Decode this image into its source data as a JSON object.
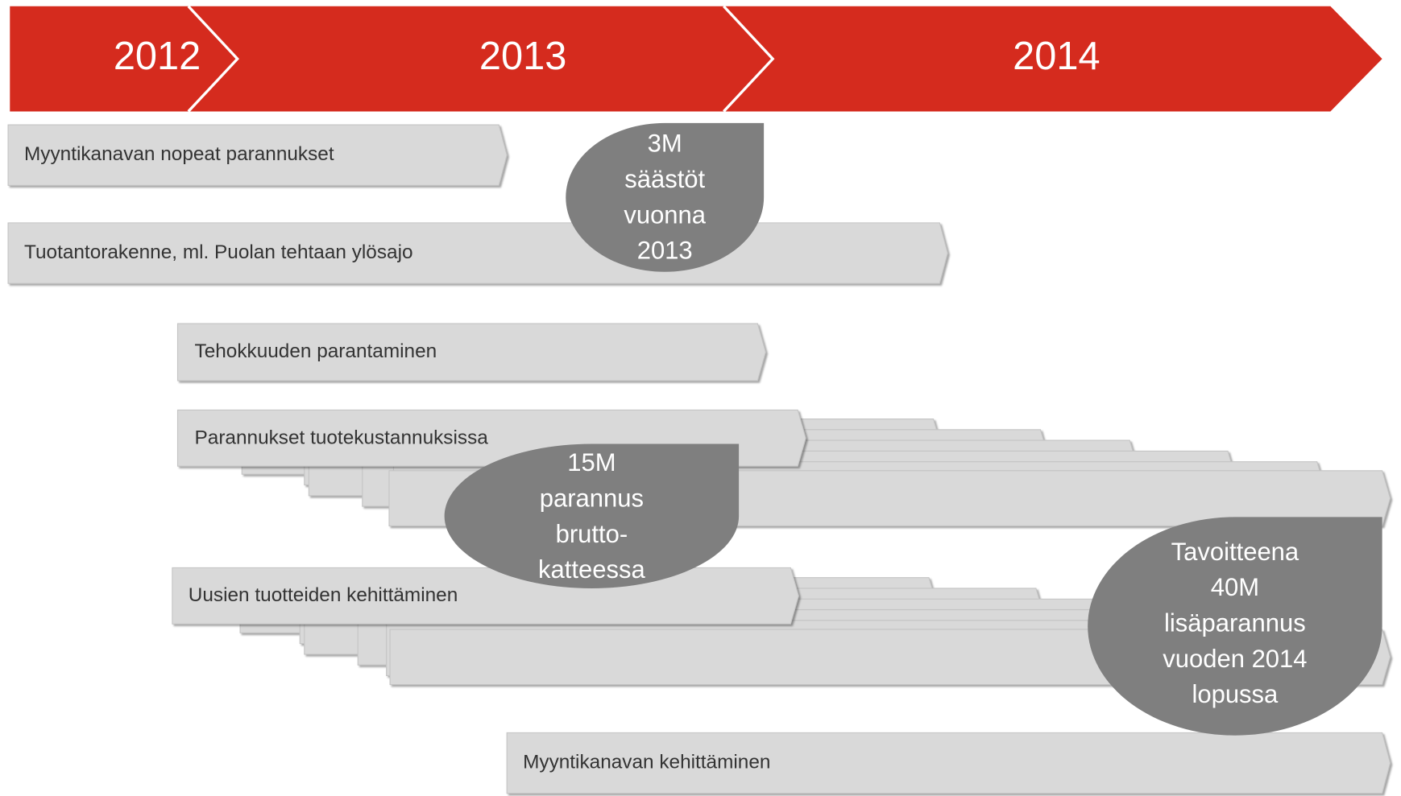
{
  "header": {
    "years": [
      "2012",
      "2013",
      "2014"
    ]
  },
  "tasks": [
    "Myyntikanavan nopeat parannukset",
    "Tuotantorakenne, ml. Puolan tehtaan ylösajo",
    "Tehokkuuden parantaminen",
    "Parannukset tuotekustannuksissa",
    "Uusien tuotteiden kehittäminen",
    "Myyntikanavan kehittäminen"
  ],
  "callouts": [
    {
      "lines": [
        "3M",
        "säästöt",
        "vuonna",
        "2013"
      ]
    },
    {
      "lines": [
        "15M",
        "parannus",
        "brutto-",
        "katteessa"
      ]
    },
    {
      "lines": [
        "Tavoitteena",
        "40M",
        "lisäparannus",
        "vuoden 2014",
        "lopussa"
      ]
    }
  ]
}
